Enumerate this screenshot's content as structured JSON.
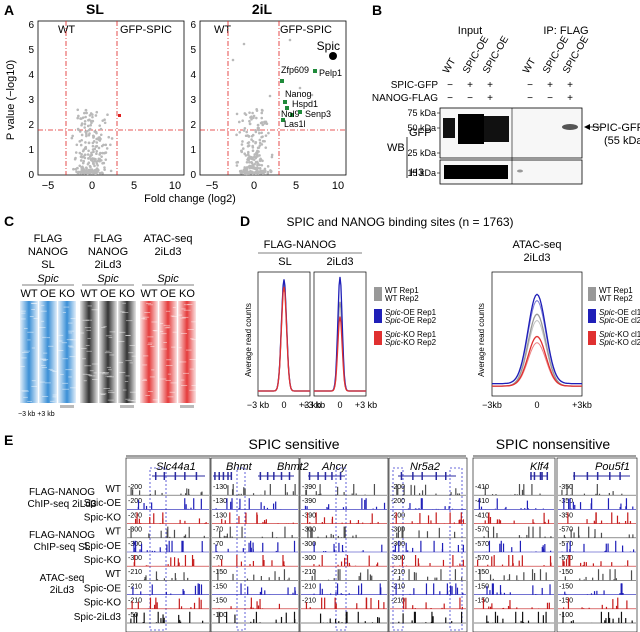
{
  "panel_labels": {
    "a": "A",
    "b": "B",
    "c": "C",
    "d": "D",
    "e": "E"
  },
  "panel_a": {
    "sl_title": "SL",
    "iil_title": "2iL",
    "wt": "WT",
    "gfp_spic": "GFP-SPIC",
    "ylabel": "P value (−log10)",
    "xlabel": "Fold change (log2)",
    "xticks": [
      "−5",
      "0",
      "5",
      "10"
    ],
    "yticks": [
      "0",
      "1",
      "2",
      "3",
      "4",
      "5",
      "6"
    ],
    "genes": [
      "Spic",
      "Zfp609",
      "Pelp1",
      "Nanog",
      "Hspd1",
      "Nol9",
      "Senp3",
      "Las1l"
    ]
  },
  "panel_b": {
    "input": "Input",
    "ip": "IP: FLAG",
    "lanes": [
      "WT",
      "SPIC-OE",
      "SPIC-OE",
      "WT",
      "SPIC-OE",
      "SPIC-OE"
    ],
    "row1_label": "SPIC-GFP",
    "row2_label": "NANOG-FLAG",
    "row1": [
      "−",
      "+",
      "+",
      "−",
      "+",
      "+"
    ],
    "row2": [
      "−",
      "−",
      "+",
      "−",
      "−",
      "+"
    ],
    "markers": [
      "75 kDa",
      "50 kDa",
      "25 kDa",
      "15 kDa"
    ],
    "wb": "WB",
    "gfp": "GFP",
    "h3": "H3",
    "arrow_label": "SPIC-GFP",
    "arrow_sub": "(55 kDa)"
  },
  "panel_c": {
    "groups": [
      {
        "l1": "FLAG",
        "l2": "NANOG",
        "l3": "SL",
        "gene": "Spic"
      },
      {
        "l1": "FLAG",
        "l2": "NANOG",
        "l3": "2iLd3",
        "gene": "Spic"
      },
      {
        "l1": "ATAC-seq",
        "l2": "2iLd3",
        "l3": "",
        "gene": "Spic"
      }
    ],
    "cols": [
      "WT",
      "OE",
      "KO"
    ],
    "range": "−3 kb +3 kb",
    "colors": [
      "#3a8fd6",
      "#333333",
      "#e53b3b"
    ]
  },
  "panel_d": {
    "title": "SPIC and NANOG binding sites (n = 1763)",
    "flag": "FLAG-NANOG",
    "sl": "SL",
    "iild3": "2iLd3",
    "atac": "ATAC-seq",
    "atac_sub": "2iLd3",
    "ylabel1": "Average read counts",
    "ylabel2": "Average read counts",
    "xticks": [
      "−3 kb",
      "0",
      "+3 kb"
    ],
    "xticks_atac": [
      "−3kb",
      "0",
      "+3kb"
    ],
    "legend1": [
      "WT Rep1",
      "WT Rep2",
      "Spic-OE Rep1",
      "Spic-OE Rep2",
      "Spic-KO Rep1",
      "Spic-KO Rep2"
    ],
    "legend2": [
      "WT Rep1",
      "WT Rep2",
      "Spic-OE cl1",
      "Spic-OE cl2",
      "Spic-KO cl1",
      "Spic-KO cl2"
    ]
  },
  "panel_e": {
    "sensitive": "SPIC sensitive",
    "nonsensitive": "SPIC nonsensitive",
    "genes": [
      "Slc44a1",
      "Bhmt",
      "Bhmt2",
      "Ahcy",
      "Nr5a2",
      "Klf4",
      "Pou5f1"
    ],
    "groups": [
      {
        "l1": "FLAG-NANOG",
        "l2": "ChIP-seq 2iLd3"
      },
      {
        "l1": "FLAG-NANOG",
        "l2": "ChIP-seq SL"
      },
      {
        "l1": "ATAC-seq",
        "l2": "2iLd3"
      }
    ],
    "tracks": [
      "WT",
      "Spic-OE",
      "Spic-KO"
    ],
    "last_track": "Spic-2iLd3",
    "scales": [
      [
        "-200",
        "-200",
        "-200",
        "-300",
        "-300",
        "-300",
        "-210",
        "-210",
        "-210",
        "-50"
      ],
      [
        "-130",
        "-130",
        "-130",
        "-70",
        "-70",
        "-70",
        "-150",
        "-150",
        "-150",
        "-100"
      ],
      [
        "-390",
        "-390",
        "-390",
        "-300",
        "-300",
        "-300",
        "-210",
        "-210",
        "-210",
        ""
      ],
      [
        "-200",
        "-200",
        "-200",
        "-300",
        "-300",
        "-300",
        "-210",
        "-210",
        "-210",
        ""
      ],
      [
        "-410",
        "-410",
        "-410",
        "-570",
        "-570",
        "-570",
        "-150",
        "-150",
        "-150",
        ""
      ],
      [
        "-350",
        "-350",
        "-350",
        "-570",
        "-570",
        "-570",
        "-150",
        "-150",
        "-150",
        "-100"
      ]
    ],
    "colors": [
      "#4d4d4d",
      "#1f1fb8",
      "#c51b1b",
      "#4d4d4d",
      "#1f1fb8",
      "#c51b1b",
      "#4d4d4d",
      "#1f1fb8",
      "#c51b1b",
      "#111111"
    ]
  }
}
